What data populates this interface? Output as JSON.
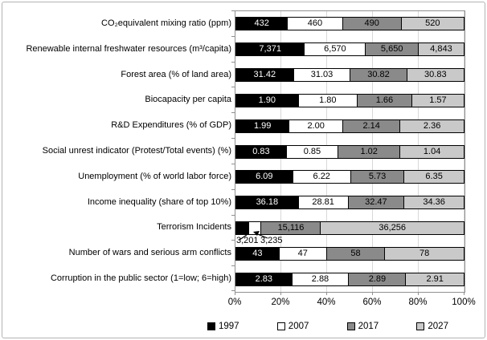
{
  "figure": {
    "background": "#ffffff",
    "border_color": "#b3b3b3"
  },
  "chart_data": {
    "type": "bar",
    "orientation": "horizontal",
    "stacked": "100%",
    "title": "",
    "xlabel": "",
    "ylabel": "",
    "xlim": [
      0,
      100
    ],
    "xticks": [
      "0%",
      "20%",
      "40%",
      "60%",
      "80%",
      "100%"
    ],
    "grid": "vertical gridlines every 20%",
    "legend_position": "bottom",
    "series_names": [
      "1997",
      "2007",
      "2017",
      "2027"
    ],
    "series_colors": [
      "#000000",
      "#ffffff",
      "#8a8a8a",
      "#c9c9c9"
    ],
    "rows": [
      {
        "category": "CO₂equivalent mixing ratio (ppm)",
        "values": [
          "432",
          "460",
          "490",
          "520"
        ]
      },
      {
        "category": "Renewable internal freshwater resources (m³/capita)",
        "values": [
          "7,371",
          "6,570",
          "5,650",
          "4,843"
        ]
      },
      {
        "category": "Forest area (% of land area)",
        "values": [
          "31.42",
          "31.03",
          "30.82",
          "30.83"
        ]
      },
      {
        "category": "Biocapacity per capita",
        "values": [
          "1.90",
          "1.80",
          "1.66",
          "1.57"
        ]
      },
      {
        "category": "R&D Expenditures (% of GDP)",
        "values": [
          "1.99",
          "2.00",
          "2.14",
          "2.36"
        ]
      },
      {
        "category": "Social unrest indicator (Protest/Total events) (%)",
        "values": [
          "0.83",
          "0.85",
          "1.02",
          "1.04"
        ]
      },
      {
        "category": "Unemployment (% of world labor force)",
        "values": [
          "6.09",
          "6.22",
          "5.73",
          "6.35"
        ]
      },
      {
        "category": "Income inequality (share of top 10%)",
        "values": [
          "36.18",
          "28.81",
          "32.47",
          "34.36"
        ]
      },
      {
        "category": "Terrorism Incidents",
        "values": [
          "3,201",
          "3,235",
          "15,116",
          "36,256"
        ],
        "callout_indices": [
          0,
          1
        ]
      },
      {
        "category": "Number of wars and serious arm conflicts",
        "values": [
          "43",
          "47",
          "58",
          "78"
        ]
      },
      {
        "category": "Corruption in the public sector (1=low; 6=high)",
        "values": [
          "2.83",
          "2.88",
          "2.89",
          "2.91"
        ]
      }
    ]
  },
  "legend": {
    "items": [
      {
        "label": "1997",
        "color": "#000000"
      },
      {
        "label": "2007",
        "color": "#ffffff"
      },
      {
        "label": "2017",
        "color": "#8a8a8a"
      },
      {
        "label": "2027",
        "color": "#c9c9c9"
      }
    ]
  }
}
